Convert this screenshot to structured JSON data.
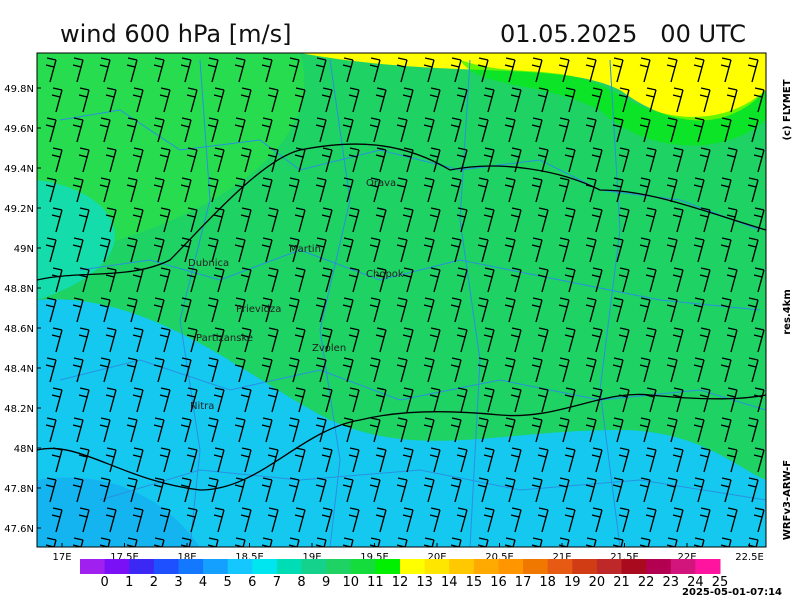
{
  "header": {
    "title": "wind 600 hPa [m/s]",
    "date": "01.05.2025   00 UTC"
  },
  "side_labels": {
    "copyright": "(c) FLYMET",
    "resolution": "res.4km",
    "model": "WRFv3-ARW-F"
  },
  "axes": {
    "lat_ticks": [
      "49.8N",
      "49.6N",
      "49.4N",
      "49.2N",
      "49N",
      "48.8N",
      "48.6N",
      "48.4N",
      "48.2N",
      "48N",
      "47.8N",
      "47.6N"
    ],
    "lon_ticks": [
      "17E",
      "17.5E",
      "18E",
      "18.5E",
      "19E",
      "19.5E",
      "20E",
      "20.5E",
      "21E",
      "21.5E",
      "22E",
      "22.5E"
    ]
  },
  "places": [
    "Orava",
    "Martin",
    "Chopok",
    "Dubnica",
    "Prievidza",
    "Partizanske",
    "Zvolen",
    "Nitra"
  ],
  "colorbar": {
    "labels": [
      "0",
      "1",
      "2",
      "3",
      "4",
      "5",
      "6",
      "7",
      "8",
      "9",
      "10",
      "11",
      "12",
      "13",
      "14",
      "15",
      "16",
      "17",
      "18",
      "19",
      "20",
      "21",
      "22",
      "23",
      "24",
      "25"
    ],
    "colors": [
      "#a020f0",
      "#7a10f5",
      "#3c28f5",
      "#1e50ff",
      "#1478ff",
      "#14a0ff",
      "#14c8ff",
      "#00e6f0",
      "#00dcb4",
      "#14d28c",
      "#1ed264",
      "#14dc3c",
      "#00f000",
      "#ffff00",
      "#ffe600",
      "#ffc800",
      "#ffaa00",
      "#ff9600",
      "#f07800",
      "#e65a14",
      "#d23c14",
      "#be2828",
      "#aa0a1e",
      "#b40050",
      "#d2147d",
      "#ff14a0"
    ]
  },
  "timestamp": "2025-05-01-07:14"
}
